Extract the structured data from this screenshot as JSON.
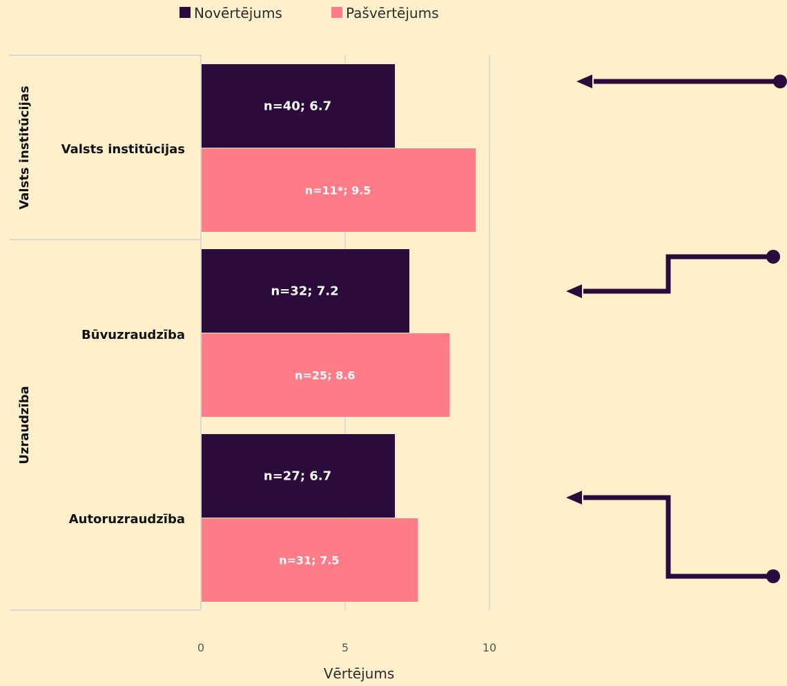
{
  "chart_data": {
    "type": "bar",
    "orientation": "horizontal",
    "xlabel": "Vērtējums",
    "xlim": [
      0,
      10
    ],
    "xticks": [
      "0",
      "5",
      "10"
    ],
    "grid": true,
    "legend_position": "top",
    "groups": [
      {
        "label": "Valsts institūcijas",
        "categories": [
          "Valsts institūcijas"
        ]
      },
      {
        "label": "Uzraudzība",
        "categories": [
          "Būvuzraudzība",
          "Autoruzraudzība"
        ]
      }
    ],
    "categories": [
      "Valsts institūcijas",
      "Būvuzraudzība",
      "Autoruzraudzība"
    ],
    "series": [
      {
        "name": "Novērtējums",
        "color": "#2a0b3b",
        "values": [
          6.7,
          7.2,
          6.7
        ],
        "labels": [
          "n=40; 6.7",
          "n=32; 7.2",
          "n=27; 6.7"
        ]
      },
      {
        "name": "Pašvērtējums",
        "color": "#ff7b87",
        "values": [
          9.5,
          8.6,
          7.5
        ],
        "labels": [
          "n=11*; 9.5",
          "n=25; 8.6",
          "n=31; 7.5"
        ]
      }
    ],
    "arrow_color": "#2a0b3b"
  }
}
